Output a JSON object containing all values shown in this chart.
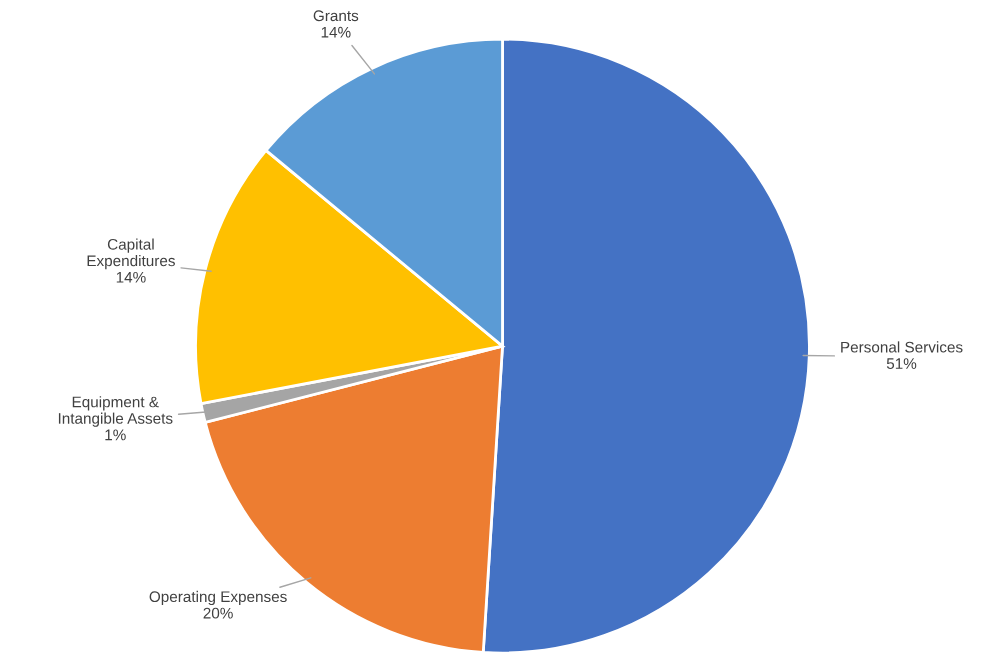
{
  "chart_data": {
    "type": "pie",
    "categories": [
      "Personal Services",
      "Operating Expenses",
      "Equipment &\nIntangible Assets",
      "Capital\nExpenditures",
      "Grants"
    ],
    "values": [
      51,
      20,
      1,
      14,
      14
    ],
    "colors": [
      "#4472c4",
      "#ed7d31",
      "#a5a5a5",
      "#ffc000",
      "#5b9bd5"
    ],
    "value_labels": [
      "51%",
      "20%",
      "1%",
      "14%",
      "14%"
    ],
    "legend": false
  }
}
